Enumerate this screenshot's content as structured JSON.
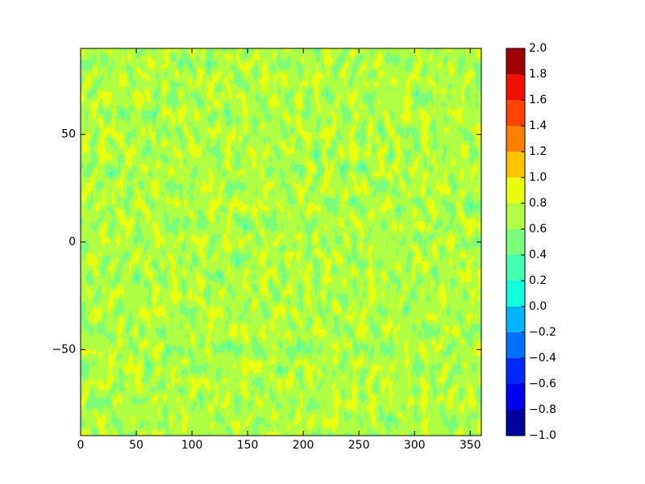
{
  "chart_data": {
    "type": "contour",
    "xlim": [
      0,
      360
    ],
    "xticks": [
      0,
      50,
      100,
      150,
      200,
      250,
      300,
      350
    ],
    "ylim": [
      -90,
      90
    ],
    "yticks": [
      {
        "value": -50,
        "label": "−50"
      },
      0,
      50
    ],
    "grid": false,
    "colorbar": {
      "ticks": [
        {
          "value": -1.0,
          "label": "−1.0"
        },
        {
          "value": -0.8,
          "label": "−0.8"
        },
        {
          "value": -0.6,
          "label": "−0.6"
        },
        {
          "value": -0.4,
          "label": "−0.4"
        },
        {
          "value": -0.2,
          "label": "−0.2"
        },
        {
          "value": 0.0,
          "label": "0.0"
        },
        0.2,
        0.4,
        0.6,
        0.8,
        {
          "value": 1.0,
          "label": "1.0"
        },
        1.2,
        1.4,
        1.6,
        1.8,
        {
          "value": 2.0,
          "label": "2.0"
        }
      ],
      "colors": [
        "#00009f",
        "#0000f0",
        "#0028ff",
        "#0070ff",
        "#00b4ff",
        "#14ffe0",
        "#44ffb0",
        "#7cff7c",
        "#b0ff44",
        "#e8ff10",
        "#ffc400",
        "#ff8000",
        "#ff4400",
        "#f01000",
        "#a00000"
      ]
    }
  }
}
